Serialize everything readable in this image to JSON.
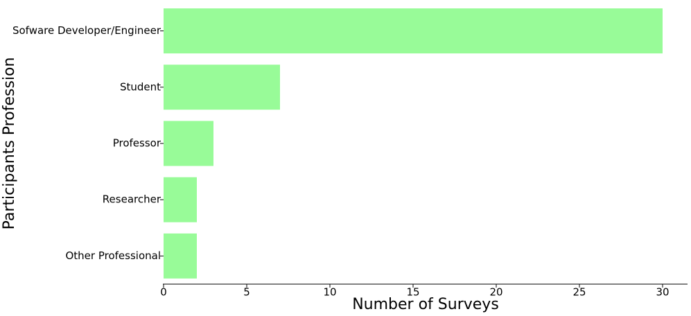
{
  "chart_data": {
    "type": "bar",
    "orientation": "horizontal",
    "xlabel": "Number of Surveys",
    "ylabel": "Participants Profession",
    "categories": [
      "Sofware Developer/Engineer",
      "Student",
      "Professor",
      "Researcher",
      "Other Professional"
    ],
    "values": [
      30,
      7,
      3,
      2,
      2
    ],
    "color": "#98fb98",
    "xlim": [
      0,
      31.5
    ],
    "xticks": [
      0,
      5,
      10,
      15,
      20,
      25,
      30
    ]
  }
}
